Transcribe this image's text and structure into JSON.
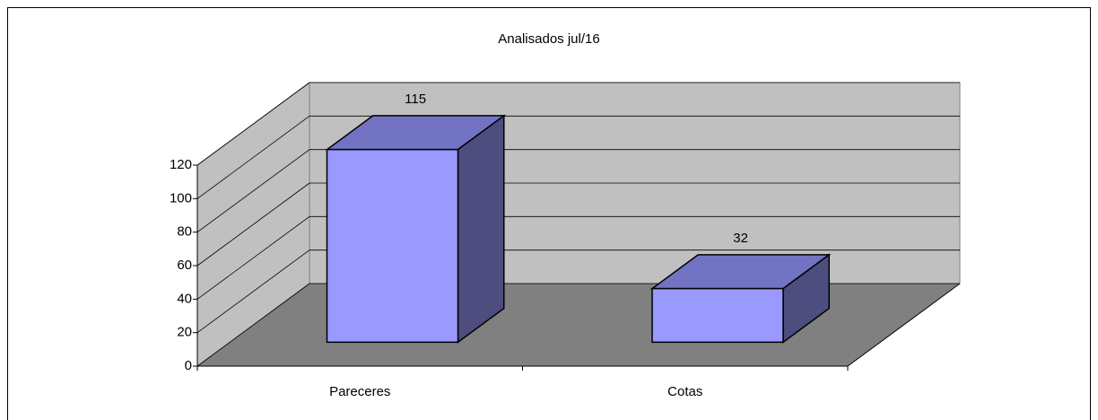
{
  "chart_data": {
    "type": "bar",
    "title": "Analisados jul/16",
    "categories": [
      "Pareceres",
      "Cotas"
    ],
    "values": [
      115,
      32
    ],
    "color": "#9999ff",
    "ylim": [
      0,
      120
    ],
    "yticks": [
      0,
      20,
      40,
      60,
      80,
      100,
      120
    ],
    "grid": true
  }
}
